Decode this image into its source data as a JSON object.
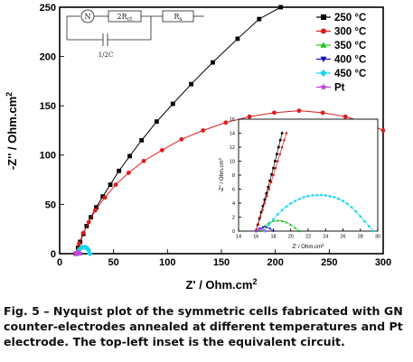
{
  "chart_data": {
    "type": "scatter",
    "xlabel": "Z' / Ohm.cm",
    "xlabel_sup": "2",
    "ylabel": "-Z'' / Ohm.cm",
    "ylabel_sup": "2",
    "xlim": [
      0,
      300
    ],
    "ylim": [
      0,
      250
    ],
    "xticks": [
      0,
      50,
      100,
      150,
      200,
      250,
      300
    ],
    "yticks": [
      0,
      50,
      100,
      150,
      200,
      250
    ],
    "legend_position": "top-right",
    "series": [
      {
        "name": "250 °C",
        "color": "#000000",
        "marker": "square",
        "x": [
          15,
          17,
          19,
          22,
          25,
          29,
          34,
          40,
          47,
          55,
          65,
          76,
          90,
          105,
          122,
          142,
          165,
          185,
          205
        ],
        "y": [
          0,
          6,
          12,
          20,
          28,
          37,
          47,
          58,
          70,
          84,
          99,
          115,
          134,
          152,
          172,
          194,
          218,
          238,
          250
        ]
      },
      {
        "name": "300 °C",
        "color": "#e01b1b",
        "marker": "circle",
        "x": [
          15,
          18,
          22,
          27,
          33,
          42,
          52,
          64,
          78,
          95,
          113,
          133,
          154,
          176,
          199,
          222,
          244,
          265,
          284,
          300
        ],
        "y": [
          0,
          10,
          21,
          32,
          44,
          57,
          70,
          82,
          94,
          105,
          116,
          125,
          133,
          139,
          143,
          145,
          143,
          139,
          133,
          125
        ]
      },
      {
        "name": "350 °C",
        "color": "#19c519",
        "marker": "triangle-up",
        "x": [],
        "y": []
      },
      {
        "name": "400 °C",
        "color": "#1010c0",
        "marker": "triangle-down",
        "x": [],
        "y": []
      },
      {
        "name": "450 °C",
        "color": "#10d6ec",
        "marker": "diamond",
        "x": [
          17,
          18,
          19.5,
          21.5,
          23.5,
          25.5,
          27,
          28
        ],
        "y": [
          0,
          3.5,
          5.5,
          6.5,
          6.6,
          5.6,
          3.3,
          0
        ]
      },
      {
        "name": "Pt",
        "color": "#c040e0",
        "marker": "star",
        "x": [
          15,
          15.5,
          16.5,
          17.5,
          18.5,
          19
        ],
        "y": [
          0,
          0.6,
          1,
          1,
          0.6,
          0
        ]
      }
    ],
    "inset": {
      "xlabel": "Z' / Ohm.cm",
      "xlabel_sup": "2",
      "ylabel": "-Z'' / Ohm.cm",
      "ylabel_sup": "2",
      "xlim": [
        14,
        30
      ],
      "ylim": [
        0,
        16
      ],
      "xticks": [
        14,
        16,
        18,
        20,
        22,
        24,
        26,
        28,
        30
      ],
      "yticks": [
        0,
        2,
        4,
        6,
        8,
        10,
        12,
        14,
        16
      ],
      "series": [
        {
          "name": "250 °C",
          "color": "#000000",
          "marker": "square",
          "x": [
            16,
            16.2,
            16.4,
            16.6,
            16.8,
            17,
            17.2,
            17.4,
            17.6,
            17.8,
            18,
            18.2,
            18.4,
            18.6,
            18.8,
            19
          ],
          "y": [
            0,
            0.9,
            1.8,
            2.7,
            3.6,
            4.5,
            5.4,
            6.3,
            7.2,
            8.1,
            9,
            10,
            11,
            12,
            13,
            14
          ]
        },
        {
          "name": "300 °C",
          "color": "#e01b1b",
          "marker": "circle",
          "x": [
            16,
            16.25,
            16.5,
            16.75,
            17,
            17.25,
            17.5,
            17.75,
            18,
            18.25,
            18.5,
            18.75,
            19,
            19.25,
            19.5
          ],
          "y": [
            0,
            1,
            2,
            3,
            4,
            5,
            6,
            7,
            8,
            9,
            10,
            11,
            12,
            13,
            14
          ]
        },
        {
          "name": "350 °C",
          "color": "#19c519",
          "marker": "triangle-up",
          "x": [
            16.5,
            17,
            17.5,
            18,
            18.5,
            19,
            19.5,
            20,
            20.5,
            21
          ],
          "y": [
            0,
            0.7,
            1.2,
            1.45,
            1.5,
            1.45,
            1.25,
            0.9,
            0.45,
            0
          ]
        },
        {
          "name": "400 °C",
          "color": "#1010c0",
          "marker": "triangle-down",
          "x": [
            16,
            16.4,
            16.8,
            17.2,
            17.6,
            18
          ],
          "y": [
            0,
            0.35,
            0.55,
            0.55,
            0.35,
            0
          ]
        },
        {
          "name": "450 °C",
          "color": "#10d6ec",
          "marker": "diamond",
          "x": [
            17,
            17.5,
            18,
            18.5,
            19,
            19.5,
            20,
            20.5,
            21,
            21.5,
            22,
            22.5,
            23,
            23.5,
            24,
            24.5,
            25,
            25.5,
            26,
            26.5,
            27,
            27.5,
            28,
            28.5,
            29,
            29.5
          ],
          "y": [
            0,
            0.9,
            1.7,
            2.4,
            3,
            3.5,
            3.95,
            4.3,
            4.6,
            4.85,
            5,
            5.1,
            5.15,
            5.15,
            5.1,
            5,
            4.85,
            4.6,
            4.3,
            3.9,
            3.4,
            2.8,
            2.1,
            1.4,
            0.7,
            0
          ]
        },
        {
          "name": "Pt",
          "color": "#c040e0",
          "marker": "star",
          "x": [
            16,
            16.3,
            16.6,
            16.9,
            17.2
          ],
          "y": [
            0,
            0.2,
            0.3,
            0.2,
            0
          ]
        }
      ]
    },
    "circuit": {
      "labels": [
        "N",
        "2R",
        "ct",
        "R",
        "s",
        "1/2C"
      ]
    }
  },
  "caption": "Fig. 5 – Nyquist plot of the symmetric cells fabricated with GN counter-electrodes annealed at different temperatures and Pt electrode. The top-left inset is the equivalent circuit."
}
